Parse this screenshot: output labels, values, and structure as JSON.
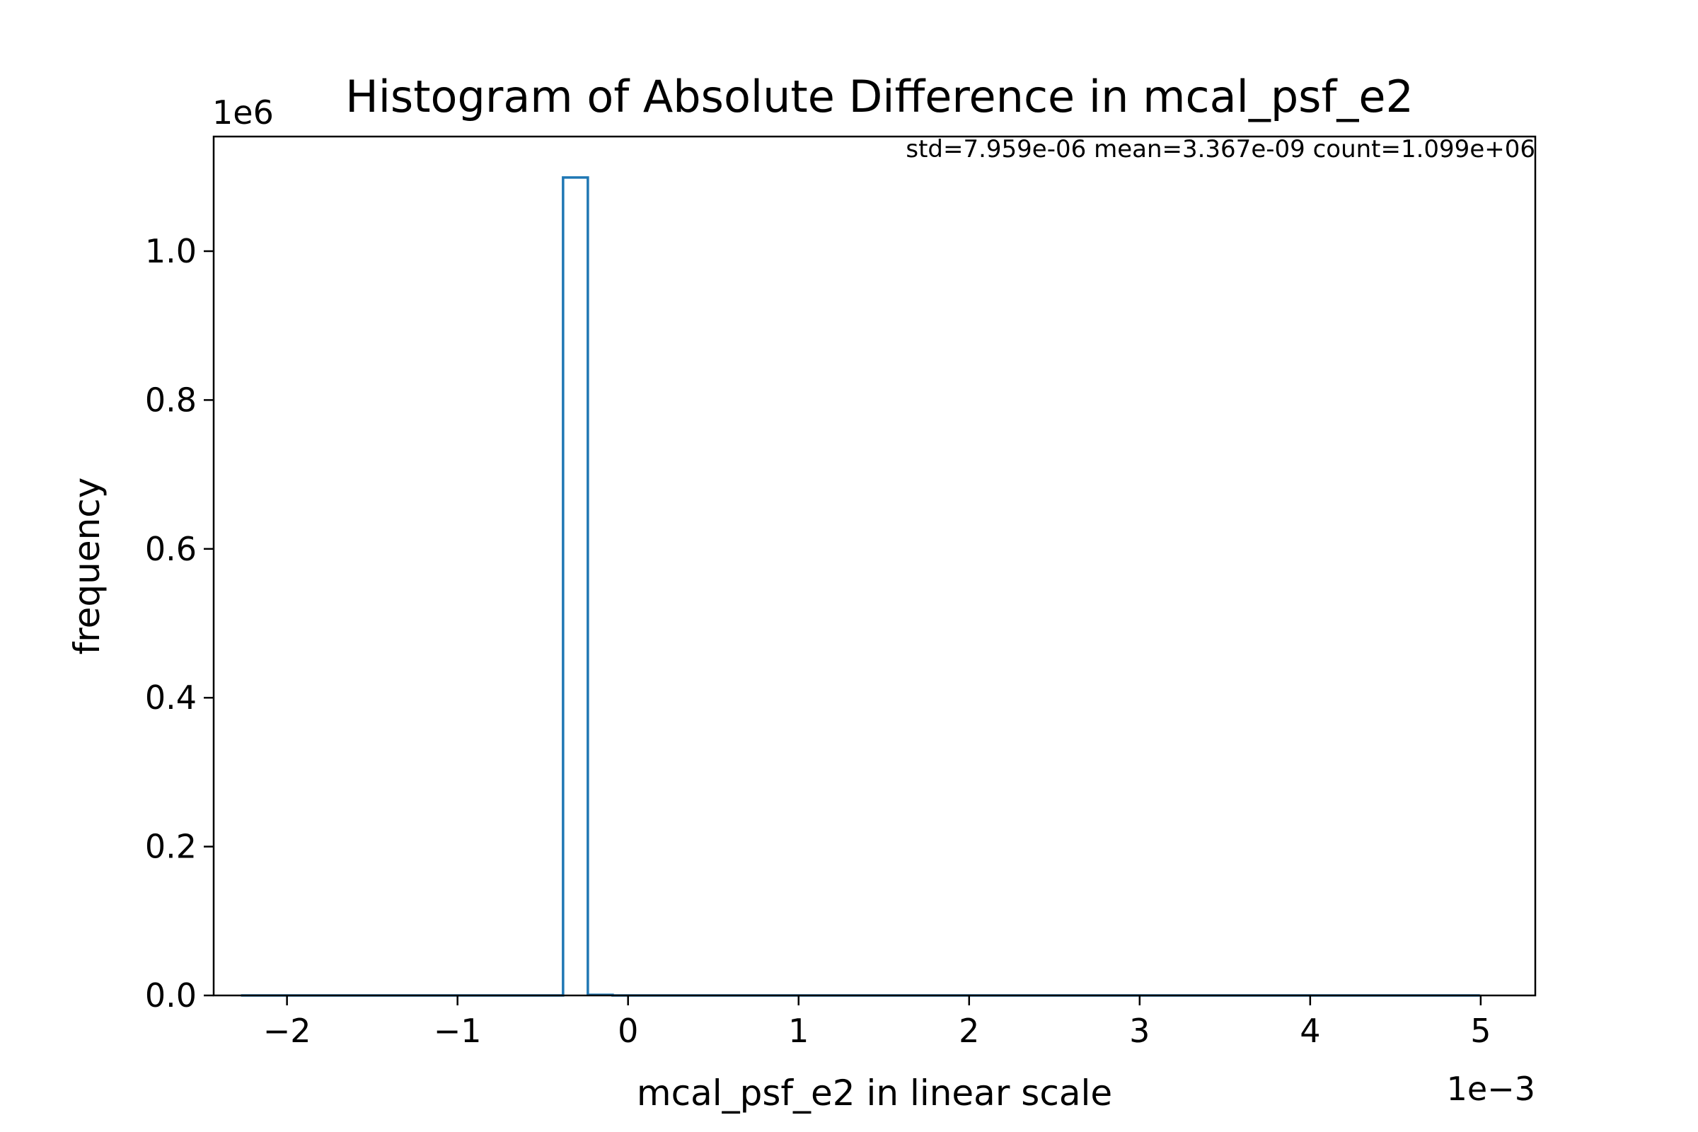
{
  "chart_data": {
    "type": "histogram",
    "histtype": "step",
    "title": "Histogram of Absolute Difference in mcal_psf_e2",
    "xlabel": "mcal_psf_e2 in linear scale",
    "ylabel": "frequency",
    "annotation": "std=7.959e-06 mean=3.367e-09 count=1.099e+06",
    "x_offset_label": "1e−3",
    "y_offset_label": "1e6",
    "x_scale_exponent": -3,
    "y_scale_exponent": 6,
    "xlim": [
      -2.43,
      5.32
    ],
    "ylim": [
      0,
      1.154
    ],
    "x_ticks": [
      -2,
      -1,
      0,
      1,
      2,
      3,
      4,
      5
    ],
    "x_tick_labels": [
      "−2",
      "−1",
      "0",
      "1",
      "2",
      "3",
      "4",
      "5"
    ],
    "y_ticks": [
      0.0,
      0.2,
      0.4,
      0.6,
      0.8,
      1.0
    ],
    "y_tick_labels": [
      "0.0",
      "0.2",
      "0.4",
      "0.6",
      "0.8",
      "1.0"
    ],
    "bin_start": -2.27,
    "bin_width": 0.1453,
    "bin_counts_nonzero": [
      {
        "bin": 13,
        "value": 1.099
      },
      {
        "bin": 14,
        "value": 0.0008
      }
    ],
    "bin_count_total": 50,
    "color": "#1f77b4",
    "grid": false,
    "legend": "none"
  }
}
